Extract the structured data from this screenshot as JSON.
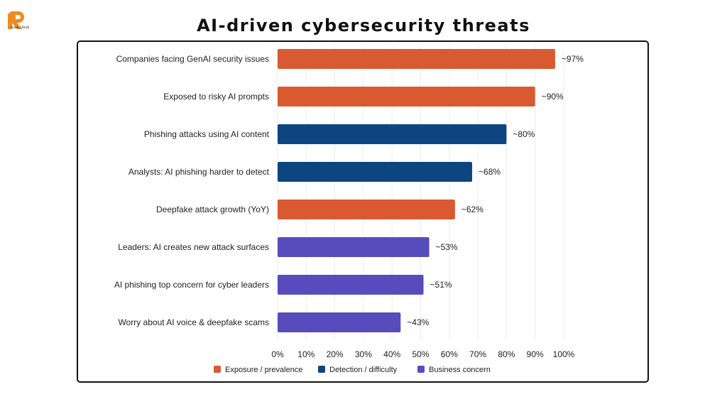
{
  "brand": {
    "name": "ruaa cloud",
    "logo_icon": "ruaa-cloud-logo-icon"
  },
  "page": {
    "title": "AI-driven cybersecurity threats"
  },
  "chart_data": {
    "type": "bar",
    "orientation": "horizontal",
    "title": "",
    "xlabel": "",
    "ylabel": "",
    "xlim": [
      0,
      100
    ],
    "grid": true,
    "legend_position": "bottom",
    "xticks": [
      "0%",
      "10%",
      "20%",
      "30%",
      "40%",
      "50%",
      "60%",
      "70%",
      "80%",
      "90%",
      "100%"
    ],
    "categories": [
      "Companies facing GenAI security issues",
      "Exposed to risky AI prompts",
      "Phishing attacks using AI content",
      "Analysts: AI phishing harder to detect",
      "Deepfake attack growth (YoY)",
      "Leaders: AI creates new attack surfaces",
      "AI phishing top concern for cyber leaders",
      "Worry about AI voice & deepfake scams"
    ],
    "values": [
      97,
      90,
      80,
      68,
      62,
      53,
      51,
      43
    ],
    "value_labels": [
      "~97%",
      "~90%",
      "~80%",
      "~68%",
      "~62%",
      "~53%",
      "~51%",
      "~43%"
    ],
    "groups": [
      "exposure",
      "exposure",
      "detection",
      "detection",
      "exposure",
      "business",
      "business",
      "business"
    ],
    "legend": [
      {
        "key": "exposure",
        "label": "Exposure / prevalence",
        "color": "#D95A31"
      },
      {
        "key": "detection",
        "label": "Detection / difficulty",
        "color": "#0D4580"
      },
      {
        "key": "business",
        "label": "Business concern",
        "color": "#584CBD"
      }
    ]
  }
}
